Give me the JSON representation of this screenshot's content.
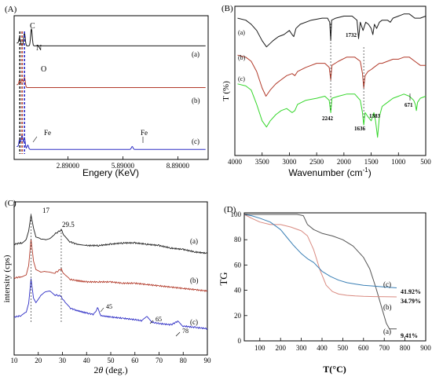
{
  "colors": {
    "black": "#1a1a1a",
    "red": "#b23a2a",
    "green": "#34d62a",
    "blue": "#2b2bc4",
    "tg_black": "#555555",
    "tg_red": "#d98a80",
    "tg_blue": "#3a7fb5"
  },
  "chart_data": [
    {
      "type": "line",
      "panel": "(A)",
      "xlabel": "Engery (KeV)",
      "xticks": [
        "2.89000",
        "5.89000",
        "8.89000"
      ],
      "xtick_values": [
        2.89,
        5.89,
        8.89
      ],
      "xlim": [
        0.0,
        10.5
      ],
      "series": [
        {
          "name": "(a)",
          "color": "black",
          "baseline": 0.79,
          "peaks": [
            [
              0.27,
              0.05
            ],
            [
              0.52,
              0.09
            ],
            [
              0.9,
              0.12
            ]
          ]
        },
        {
          "name": "(b)",
          "color": "red",
          "baseline": 0.5,
          "peaks": [
            [
              0.27,
              0.04
            ],
            [
              0.39,
              0.06
            ],
            [
              0.52,
              0.07
            ]
          ]
        },
        {
          "name": "(c)",
          "color": "blue",
          "baseline": 0.07,
          "peaks": [
            [
              0.27,
              0.06
            ],
            [
              0.39,
              0.1
            ],
            [
              0.52,
              0.08
            ],
            [
              0.7,
              0.03
            ],
            [
              6.4,
              0.02
            ]
          ]
        }
      ],
      "annotations": [
        "C",
        "N",
        "O",
        "Fe",
        "Fe"
      ]
    },
    {
      "type": "line",
      "panel": "(B)",
      "xlabel": "Wavenumber (cm",
      "xlabel_sup": "-1",
      "xlabel_end": ")",
      "ylabel": "T (%)",
      "xlim": [
        4000,
        500
      ],
      "xticks": [
        4000,
        3500,
        3000,
        2500,
        2000,
        1500,
        1000,
        500
      ],
      "series": [
        {
          "name": "(a)",
          "color": "black",
          "x": [
            3950,
            3800,
            3700,
            3600,
            3500,
            3420,
            3300,
            3200,
            3100,
            3000,
            2950,
            2920,
            2880,
            2800,
            2600,
            2400,
            2300,
            2260,
            2242,
            2225,
            2150,
            2000,
            1850,
            1760,
            1732,
            1700,
            1650,
            1600,
            1550,
            1500,
            1470,
            1440,
            1400,
            1350,
            1300,
            1200,
            1150,
            1100,
            1000,
            900,
            800,
            700,
            600,
            500
          ],
          "y": [
            90,
            89,
            87,
            84,
            79,
            76,
            79,
            81,
            82,
            84,
            82,
            81,
            85,
            87,
            89,
            90,
            90,
            88,
            79,
            89,
            90,
            91,
            91,
            89,
            80,
            88,
            84,
            88,
            87,
            85,
            82,
            87,
            85,
            88,
            89,
            89,
            88,
            90,
            91,
            92,
            92,
            90,
            90,
            91
          ]
        },
        {
          "name": "(b)",
          "color": "red",
          "x": [
            3950,
            3800,
            3700,
            3600,
            3500,
            3430,
            3350,
            3250,
            3150,
            3050,
            2950,
            2900,
            2850,
            2700,
            2500,
            2350,
            2270,
            2242,
            2220,
            2100,
            1950,
            1800,
            1700,
            1660,
            1636,
            1610,
            1560,
            1500,
            1450,
            1400,
            1350,
            1300,
            1200,
            1100,
            1000,
            900,
            800,
            700,
            600,
            500
          ],
          "y": [
            72,
            71,
            69,
            64,
            56,
            52,
            55,
            58,
            60,
            62,
            63,
            62,
            64,
            66,
            68,
            68,
            66,
            60,
            67,
            69,
            71,
            71,
            69,
            63,
            56,
            62,
            64,
            65,
            66,
            67,
            68,
            68,
            69,
            70,
            70,
            71,
            71,
            69,
            67,
            67
          ]
        },
        {
          "name": "(c)",
          "color": "green",
          "x": [
            3950,
            3800,
            3700,
            3600,
            3500,
            3420,
            3350,
            3250,
            3150,
            3050,
            2950,
            2900,
            2850,
            2700,
            2500,
            2350,
            2270,
            2242,
            2220,
            2100,
            1950,
            1800,
            1700,
            1660,
            1636,
            1610,
            1560,
            1500,
            1450,
            1420,
            1383,
            1350,
            1300,
            1200,
            1100,
            1000,
            900,
            800,
            720,
            690,
            671,
            650,
            600,
            500
          ],
          "y": [
            58,
            57,
            55,
            48,
            40,
            37,
            40,
            43,
            45,
            46,
            44,
            45,
            48,
            50,
            51,
            52,
            50,
            44,
            51,
            52,
            53,
            53,
            50,
            44,
            38,
            44,
            42,
            40,
            44,
            40,
            32,
            42,
            47,
            49,
            51,
            52,
            53,
            52,
            50,
            48,
            45,
            49,
            51,
            52
          ]
        }
      ],
      "annotations": [
        "1732",
        "2242",
        "1636",
        "1383",
        "671"
      ]
    },
    {
      "type": "line",
      "panel": "(C)",
      "xlabel": "2θ (deg.)",
      "ylabel": "intersity (cps)",
      "xlim": [
        10,
        90
      ],
      "xticks": [
        10,
        20,
        30,
        40,
        50,
        60,
        70,
        80,
        90
      ],
      "series": [
        {
          "name": "(a)",
          "color": "black",
          "x": [
            10,
            13,
            15,
            16,
            17,
            18,
            19,
            21,
            23,
            25,
            27,
            29.5,
            31,
            33,
            36,
            40,
            45,
            50,
            55,
            60,
            65,
            70,
            75,
            80,
            85,
            90
          ],
          "y": [
            78,
            79,
            82,
            88,
            100,
            90,
            83,
            82,
            82,
            83,
            86,
            89,
            84,
            80,
            78,
            77,
            77,
            78,
            79,
            79,
            78,
            77,
            75,
            74,
            72,
            71
          ]
        },
        {
          "name": "(b)",
          "color": "red",
          "x": [
            10,
            13,
            15,
            16,
            17,
            18,
            19,
            21,
            23,
            25,
            27,
            29.5,
            31,
            33,
            36,
            40,
            45,
            50,
            55,
            60,
            65,
            70,
            75,
            80,
            85,
            90
          ],
          "y": [
            52,
            53,
            55,
            62,
            82,
            65,
            58,
            56,
            57,
            57,
            56,
            59,
            54,
            51,
            50,
            49,
            49,
            49,
            48,
            48,
            47,
            46,
            45,
            44,
            43,
            42
          ]
        },
        {
          "name": "(c)",
          "color": "blue",
          "x": [
            10,
            13,
            15,
            16,
            17,
            18,
            19,
            21,
            23,
            25,
            27,
            29.5,
            31,
            33,
            36,
            40,
            43,
            44.5,
            46,
            50,
            55,
            60,
            63,
            65,
            67,
            70,
            75,
            78,
            80,
            85,
            90
          ],
          "y": [
            22,
            23,
            26,
            33,
            52,
            37,
            33,
            38,
            41,
            42,
            39,
            38,
            33,
            29,
            27,
            25,
            24,
            29,
            23,
            22,
            21,
            20,
            19,
            22,
            18,
            17,
            16,
            19,
            15,
            14,
            13
          ]
        }
      ],
      "annotations": [
        "17",
        "29.5",
        "45",
        "65",
        "78"
      ]
    },
    {
      "type": "line",
      "panel": "(D)",
      "xlabel": "T(°C)",
      "ylabel": "TG",
      "xlim": [
        25,
        900
      ],
      "ylim": [
        0,
        100
      ],
      "xticks": [
        100,
        200,
        300,
        400,
        500,
        600,
        700,
        800,
        900
      ],
      "yticks": [
        0,
        20,
        40,
        60,
        80,
        100
      ],
      "series": [
        {
          "name": "(a)",
          "color": "tg_black",
          "residue": "9.41%",
          "x": [
            25,
            100,
            200,
            280,
            310,
            330,
            360,
            400,
            450,
            500,
            550,
            600,
            630,
            660,
            690,
            710,
            725,
            740,
            760
          ],
          "y": [
            100,
            100,
            100,
            100,
            99,
            92,
            88,
            85,
            83,
            80,
            75,
            66,
            57,
            42,
            25,
            14,
            9.41,
            9.41,
            9.41
          ]
        },
        {
          "name": "(b)",
          "color": "tg_red",
          "residue": "34.79%",
          "x": [
            25,
            60,
            100,
            150,
            200,
            250,
            300,
            330,
            360,
            390,
            420,
            450,
            480,
            520,
            560,
            600,
            650,
            700,
            760
          ],
          "y": [
            100,
            97,
            94,
            92,
            92,
            90,
            87,
            83,
            72,
            56,
            44,
            39,
            37,
            36,
            35.5,
            35.2,
            35,
            34.9,
            34.79
          ]
        },
        {
          "name": "(c)",
          "color": "tg_blue",
          "residue": "41.92%",
          "x": [
            25,
            60,
            100,
            150,
            200,
            230,
            260,
            300,
            330,
            360,
            400,
            440,
            480,
            520,
            560,
            600,
            650,
            700,
            760
          ],
          "y": [
            100,
            99,
            97,
            94,
            88,
            82,
            76,
            69,
            65,
            62,
            55,
            51,
            48,
            46,
            45,
            44,
            43.3,
            42.6,
            41.92
          ]
        }
      ]
    }
  ],
  "panels": {
    "a": {
      "label": "(A)",
      "c_label": "C",
      "n_label": "N",
      "o_label": "O",
      "fe1_label": "Fe",
      "fe2_label": "Fe",
      "series_a": "(a)",
      "series_b": "(b)",
      "series_c": "(c)",
      "xtick1": "2.89000",
      "xtick2": "5.89000",
      "xtick3": "8.89000",
      "xlabel": "Engery (KeV)"
    },
    "b": {
      "label": "(B)",
      "ylabel": "T (%)",
      "xlabel": "Wavenumber (cm",
      "xlabel_sup": "-1",
      "xlabel_end": ")",
      "series_a": "(a)",
      "series_b": "(b)",
      "series_c": "(c)",
      "ann_1732": "1732",
      "ann_2242": "2242",
      "ann_1636": "1636",
      "ann_1383": "1383",
      "ann_671": "671"
    },
    "c": {
      "label": "(C)",
      "ylabel": "intersity (cps)",
      "xlabel_theta": "θ",
      "xlabel_two": "2",
      "xlabel_rest": " (deg.)",
      "series_a": "(a)",
      "series_b": "(b)",
      "series_c": "(c)",
      "ann_17": "17",
      "ann_295": "29.5",
      "ann_45": "45",
      "ann_65": "65",
      "ann_78": "78"
    },
    "d": {
      "label": "(D)",
      "ylabel": "TG",
      "xlabel": "T(°C)",
      "series_a": "(a)",
      "series_b": "(b)",
      "series_c": "(c)",
      "res_a": "9.41%",
      "res_b": "34.79%",
      "res_c": "41.92%"
    }
  }
}
